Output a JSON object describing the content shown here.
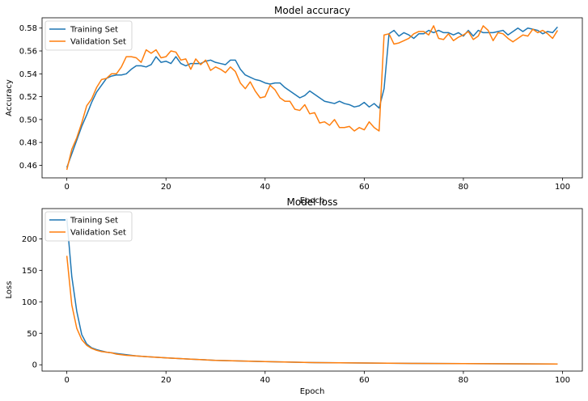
{
  "chart_data": [
    {
      "type": "line",
      "title": "Model accuracy",
      "xlabel": "Epoch",
      "ylabel": "Accuracy",
      "xlim": [
        -5,
        104
      ],
      "ylim": [
        0.449,
        0.589
      ],
      "xticks": [
        0,
        20,
        40,
        60,
        80,
        100
      ],
      "yticks": [
        0.46,
        0.48,
        0.5,
        0.52,
        0.54,
        0.56,
        0.58
      ],
      "ytick_labels": [
        "0.46",
        "0.48",
        "0.50",
        "0.52",
        "0.54",
        "0.56",
        "0.58"
      ],
      "legend_position": "top-left",
      "series": [
        {
          "name": "Training Set",
          "color": "#1f77b4",
          "x": [
            0,
            1,
            2,
            3,
            4,
            5,
            6,
            7,
            8,
            9,
            10,
            11,
            12,
            13,
            14,
            15,
            16,
            17,
            18,
            19,
            20,
            21,
            22,
            23,
            24,
            25,
            26,
            27,
            28,
            29,
            30,
            31,
            32,
            33,
            34,
            35,
            36,
            37,
            38,
            39,
            40,
            41,
            42,
            43,
            44,
            45,
            46,
            47,
            48,
            49,
            50,
            51,
            52,
            53,
            54,
            55,
            56,
            57,
            58,
            59,
            60,
            61,
            62,
            63,
            64,
            65,
            66,
            67,
            68,
            69,
            70,
            71,
            72,
            73,
            74,
            75,
            76,
            77,
            78,
            79,
            80,
            81,
            82,
            83,
            84,
            85,
            86,
            87,
            88,
            89,
            90,
            91,
            92,
            93,
            94,
            95,
            96,
            97,
            98,
            99
          ],
          "values": [
            0.458,
            0.47,
            0.482,
            0.494,
            0.504,
            0.515,
            0.524,
            0.53,
            0.536,
            0.538,
            0.539,
            0.539,
            0.54,
            0.544,
            0.547,
            0.547,
            0.546,
            0.548,
            0.555,
            0.55,
            0.551,
            0.549,
            0.555,
            0.549,
            0.547,
            0.549,
            0.549,
            0.549,
            0.551,
            0.552,
            0.55,
            0.549,
            0.548,
            0.552,
            0.552,
            0.544,
            0.539,
            0.537,
            0.535,
            0.534,
            0.532,
            0.531,
            0.532,
            0.532,
            0.528,
            0.525,
            0.522,
            0.519,
            0.521,
            0.525,
            0.522,
            0.519,
            0.516,
            0.515,
            0.514,
            0.516,
            0.514,
            0.513,
            0.511,
            0.512,
            0.515,
            0.511,
            0.514,
            0.51,
            0.527,
            0.575,
            0.578,
            0.573,
            0.576,
            0.574,
            0.571,
            0.575,
            0.575,
            0.578,
            0.576,
            0.578,
            0.576,
            0.576,
            0.574,
            0.576,
            0.573,
            0.578,
            0.573,
            0.578,
            0.576,
            0.576,
            0.576,
            0.577,
            0.578,
            0.574,
            0.577,
            0.58,
            0.577,
            0.58,
            0.579,
            0.578,
            0.575,
            0.577,
            0.576,
            0.581
          ]
        },
        {
          "name": "Validation Set",
          "color": "#ff7f0e",
          "x": [
            0,
            1,
            2,
            3,
            4,
            5,
            6,
            7,
            8,
            9,
            10,
            11,
            12,
            13,
            14,
            15,
            16,
            17,
            18,
            19,
            20,
            21,
            22,
            23,
            24,
            25,
            26,
            27,
            28,
            29,
            30,
            31,
            32,
            33,
            34,
            35,
            36,
            37,
            38,
            39,
            40,
            41,
            42,
            43,
            44,
            45,
            46,
            47,
            48,
            49,
            50,
            51,
            52,
            53,
            54,
            55,
            56,
            57,
            58,
            59,
            60,
            61,
            62,
            63,
            64,
            65,
            66,
            67,
            68,
            69,
            70,
            71,
            72,
            73,
            74,
            75,
            76,
            77,
            78,
            79,
            80,
            81,
            82,
            83,
            84,
            85,
            86,
            87,
            88,
            89,
            90,
            91,
            92,
            93,
            94,
            95,
            96,
            97,
            98,
            99
          ],
          "values": [
            0.456,
            0.474,
            0.484,
            0.497,
            0.512,
            0.518,
            0.528,
            0.535,
            0.536,
            0.54,
            0.54,
            0.546,
            0.555,
            0.555,
            0.554,
            0.55,
            0.561,
            0.558,
            0.561,
            0.554,
            0.555,
            0.56,
            0.559,
            0.552,
            0.553,
            0.544,
            0.553,
            0.548,
            0.552,
            0.543,
            0.546,
            0.544,
            0.541,
            0.546,
            0.542,
            0.532,
            0.527,
            0.533,
            0.525,
            0.519,
            0.52,
            0.53,
            0.526,
            0.519,
            0.516,
            0.516,
            0.509,
            0.508,
            0.513,
            0.505,
            0.506,
            0.497,
            0.498,
            0.495,
            0.5,
            0.493,
            0.493,
            0.494,
            0.49,
            0.493,
            0.491,
            0.498,
            0.493,
            0.49,
            0.574,
            0.575,
            0.566,
            0.567,
            0.569,
            0.571,
            0.575,
            0.577,
            0.577,
            0.574,
            0.582,
            0.571,
            0.57,
            0.575,
            0.569,
            0.572,
            0.574,
            0.577,
            0.57,
            0.573,
            0.582,
            0.578,
            0.569,
            0.576,
            0.575,
            0.571,
            0.568,
            0.571,
            0.574,
            0.573,
            0.579,
            0.576,
            0.578,
            0.575,
            0.571,
            0.578
          ]
        }
      ]
    },
    {
      "type": "line",
      "title": "Model loss",
      "xlabel": "Epoch",
      "ylabel": "Loss",
      "xlim": [
        -5,
        104
      ],
      "ylim": [
        -10,
        248
      ],
      "xticks": [
        0,
        20,
        40,
        60,
        80,
        100
      ],
      "yticks": [
        0,
        50,
        100,
        150,
        200
      ],
      "ytick_labels": [
        "0",
        "50",
        "100",
        "150",
        "200"
      ],
      "legend_position": "top-left",
      "series": [
        {
          "name": "Training Set",
          "color": "#1f77b4",
          "x": [
            0,
            1,
            2,
            3,
            4,
            5,
            6,
            7,
            8,
            9,
            10,
            12,
            14,
            16,
            18,
            20,
            25,
            30,
            35,
            40,
            50,
            60,
            70,
            80,
            90,
            99
          ],
          "values": [
            232,
            140,
            85,
            48,
            33,
            27,
            24,
            22,
            20,
            19,
            18,
            16,
            14,
            13,
            12,
            11,
            9,
            7,
            6,
            5,
            3.5,
            2.8,
            2.2,
            1.8,
            1.5,
            1.3
          ]
        },
        {
          "name": "Validation Set",
          "color": "#ff7f0e",
          "x": [
            0,
            1,
            2,
            3,
            4,
            5,
            6,
            7,
            8,
            9,
            10,
            12,
            14,
            16,
            18,
            20,
            25,
            30,
            35,
            40,
            50,
            60,
            70,
            80,
            90,
            99
          ],
          "values": [
            173,
            95,
            58,
            40,
            31,
            26,
            23,
            21,
            20,
            19,
            17,
            15,
            14,
            13,
            12,
            11,
            9,
            7,
            6,
            5,
            3.5,
            2.8,
            2.2,
            1.8,
            1.5,
            1.3
          ]
        }
      ]
    }
  ]
}
